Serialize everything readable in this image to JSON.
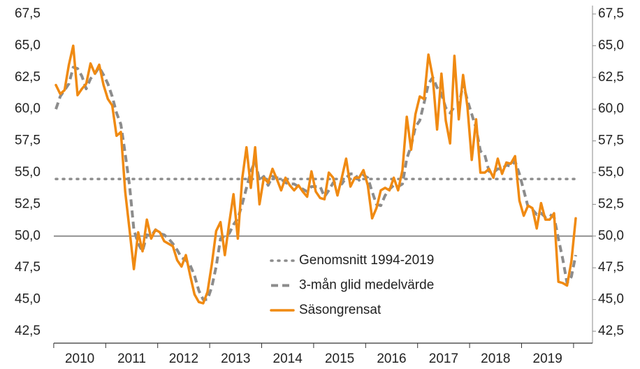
{
  "chart_data": {
    "type": "line",
    "categories": [
      null,
      null,
      null,
      null,
      null,
      null,
      "2010",
      null,
      null,
      null,
      null,
      null,
      null,
      null,
      null,
      null,
      null,
      null,
      "2011",
      null,
      null,
      null,
      null,
      null,
      null,
      null,
      null,
      null,
      null,
      null,
      "2012",
      null,
      null,
      null,
      null,
      null,
      null,
      null,
      null,
      null,
      null,
      null,
      "2013",
      null,
      null,
      null,
      null,
      null,
      null,
      null,
      null,
      null,
      null,
      null,
      "2014",
      null,
      null,
      null,
      null,
      null,
      null,
      null,
      null,
      null,
      null,
      null,
      "2015",
      null,
      null,
      null,
      null,
      null,
      null,
      null,
      null,
      null,
      null,
      null,
      "2016",
      null,
      null,
      null,
      null,
      null,
      null,
      null,
      null,
      null,
      null,
      null,
      "2017",
      null,
      null,
      null,
      null,
      null,
      null,
      null,
      null,
      null,
      null,
      null,
      "2018",
      null,
      null,
      null,
      null,
      null,
      null,
      null,
      null,
      null,
      null,
      null,
      "2019",
      null,
      null,
      null,
      null,
      null,
      null
    ],
    "series": [
      {
        "name": "Genomsnitt 1994-2019",
        "color": "#8c8c8c",
        "style": "dotted",
        "values": [
          54.5,
          54.5,
          54.5,
          54.5,
          54.5,
          54.5,
          54.5,
          54.5,
          54.5,
          54.5,
          54.5,
          54.5,
          54.5,
          54.5,
          54.5,
          54.5,
          54.5,
          54.5,
          54.5,
          54.5,
          54.5,
          54.5,
          54.5,
          54.5,
          54.5,
          54.5,
          54.5,
          54.5,
          54.5,
          54.5,
          54.5,
          54.5,
          54.5,
          54.5,
          54.5,
          54.5,
          54.5,
          54.5,
          54.5,
          54.5,
          54.5,
          54.5,
          54.5,
          54.5,
          54.5,
          54.5,
          54.5,
          54.5,
          54.5,
          54.5,
          54.5,
          54.5,
          54.5,
          54.5,
          54.5,
          54.5,
          54.5,
          54.5,
          54.5,
          54.5,
          54.5,
          54.5,
          54.5,
          54.5,
          54.5,
          54.5,
          54.5,
          54.5,
          54.5,
          54.5,
          54.5,
          54.5,
          54.5,
          54.5,
          54.5,
          54.5,
          54.5,
          54.5,
          54.5,
          54.5,
          54.5,
          54.5,
          54.5,
          54.5,
          54.5,
          54.5,
          54.5,
          54.5,
          54.5,
          54.5,
          54.5,
          54.5,
          54.5,
          54.5,
          54.5,
          54.5,
          54.5,
          54.5,
          54.5,
          54.5,
          54.5,
          54.5,
          54.5,
          54.5,
          54.5,
          54.5,
          54.5,
          54.5,
          54.5,
          54.5,
          54.5,
          54.5,
          54.5,
          54.5,
          54.5,
          54.5,
          54.5,
          54.5,
          54.5,
          54.5,
          54.5
        ]
      },
      {
        "name": "3-mån glid medelvärde",
        "color": "#8c8c8c",
        "style": "dashed",
        "values": [
          60.0,
          61.0,
          61.5,
          62.0,
          63.3,
          63.2,
          62.6,
          61.6,
          62.4,
          62.8,
          63.3,
          62.7,
          62.0,
          61.0,
          59.7,
          58.8,
          56.5,
          54.0,
          50.5,
          49.4,
          48.8,
          50.1,
          50.0,
          50.5,
          50.2,
          50.1,
          49.8,
          49.4,
          48.9,
          48.3,
          48.1,
          47.7,
          46.9,
          45.7,
          45.0,
          45.0,
          46.0,
          47.6,
          49.8,
          50.0,
          50.2,
          50.9,
          51.4,
          52.5,
          53.8,
          55.1,
          55.9,
          54.4,
          54.7,
          54.0,
          54.7,
          54.6,
          54.5,
          54.2,
          54.1,
          54.1,
          53.9,
          53.7,
          53.5,
          53.9,
          53.9,
          53.9,
          53.1,
          53.6,
          54.2,
          54.3,
          54.1,
          54.6,
          54.9,
          54.9,
          54.4,
          54.8,
          54.6,
          53.5,
          52.5,
          52.4,
          53.2,
          53.7,
          54.0,
          53.9,
          54.1,
          56.1,
          57.1,
          58.6,
          59.1,
          60.5,
          62.0,
          62.5,
          61.7,
          61.2,
          60.1,
          59.7,
          60.2,
          60.2,
          62.0,
          60.7,
          59.6,
          58.5,
          56.7,
          56.4,
          55.1,
          55.0,
          55.3,
          55.3,
          55.6,
          55.5,
          55.9,
          54.9,
          53.6,
          52.3,
          52.1,
          51.7,
          51.8,
          51.5,
          51.7,
          51.5,
          49.8,
          48.2,
          46.3,
          46.8,
          48.5
        ]
      },
      {
        "name": "Säsongrensat",
        "color": "#f08a12",
        "style": "solid",
        "values": [
          61.9,
          61.2,
          61.5,
          63.5,
          65.0,
          61.1,
          61.6,
          62.0,
          63.6,
          62.8,
          63.5,
          61.9,
          60.8,
          60.3,
          57.9,
          58.2,
          53.5,
          50.5,
          47.4,
          50.3,
          48.8,
          51.3,
          49.8,
          50.5,
          50.3,
          49.6,
          49.4,
          49.2,
          48.1,
          47.6,
          48.5,
          46.9,
          45.4,
          44.8,
          44.7,
          45.6,
          47.8,
          50.4,
          51.1,
          48.5,
          51.0,
          53.3,
          49.8,
          54.5,
          57.0,
          53.8,
          57.0,
          52.5,
          54.6,
          54.2,
          55.3,
          54.5,
          53.6,
          54.6,
          54.0,
          53.6,
          54.0,
          53.5,
          53.1,
          55.1,
          53.5,
          53.0,
          52.9,
          55.0,
          54.6,
          53.2,
          54.6,
          56.1,
          53.9,
          54.6,
          54.6,
          55.2,
          54.0,
          51.4,
          52.2,
          53.6,
          53.8,
          53.6,
          54.6,
          53.6,
          55.2,
          59.4,
          56.8,
          59.6,
          61.0,
          60.8,
          64.3,
          62.5,
          58.4,
          62.8,
          59.1,
          57.3,
          64.2,
          59.2,
          62.7,
          60.2,
          56.0,
          59.2,
          55.0,
          55.0,
          55.3,
          54.6,
          56.1,
          54.9,
          55.8,
          55.7,
          56.3,
          52.8,
          51.6,
          52.4,
          52.2,
          50.6,
          52.6,
          51.3,
          51.3,
          51.8,
          46.4,
          46.3,
          46.1,
          48.0,
          51.4
        ]
      }
    ],
    "hline": 50,
    "ylim": [
      42.5,
      67.5
    ],
    "yticks": [
      {
        "value": 42.5,
        "label": "42,5"
      },
      {
        "value": 45,
        "label": "45,0"
      },
      {
        "value": 47.5,
        "label": "47,5"
      },
      {
        "value": 50,
        "label": "50,0"
      },
      {
        "value": 52.5,
        "label": "52,5"
      },
      {
        "value": 55,
        "label": "55,0"
      },
      {
        "value": 57.5,
        "label": "57,5"
      },
      {
        "value": 60,
        "label": "60,0"
      },
      {
        "value": 62.5,
        "label": "62,5"
      },
      {
        "value": 65,
        "label": "65,0"
      },
      {
        "value": 67.5,
        "label": "67,5"
      }
    ],
    "legend": "bottom-center"
  }
}
